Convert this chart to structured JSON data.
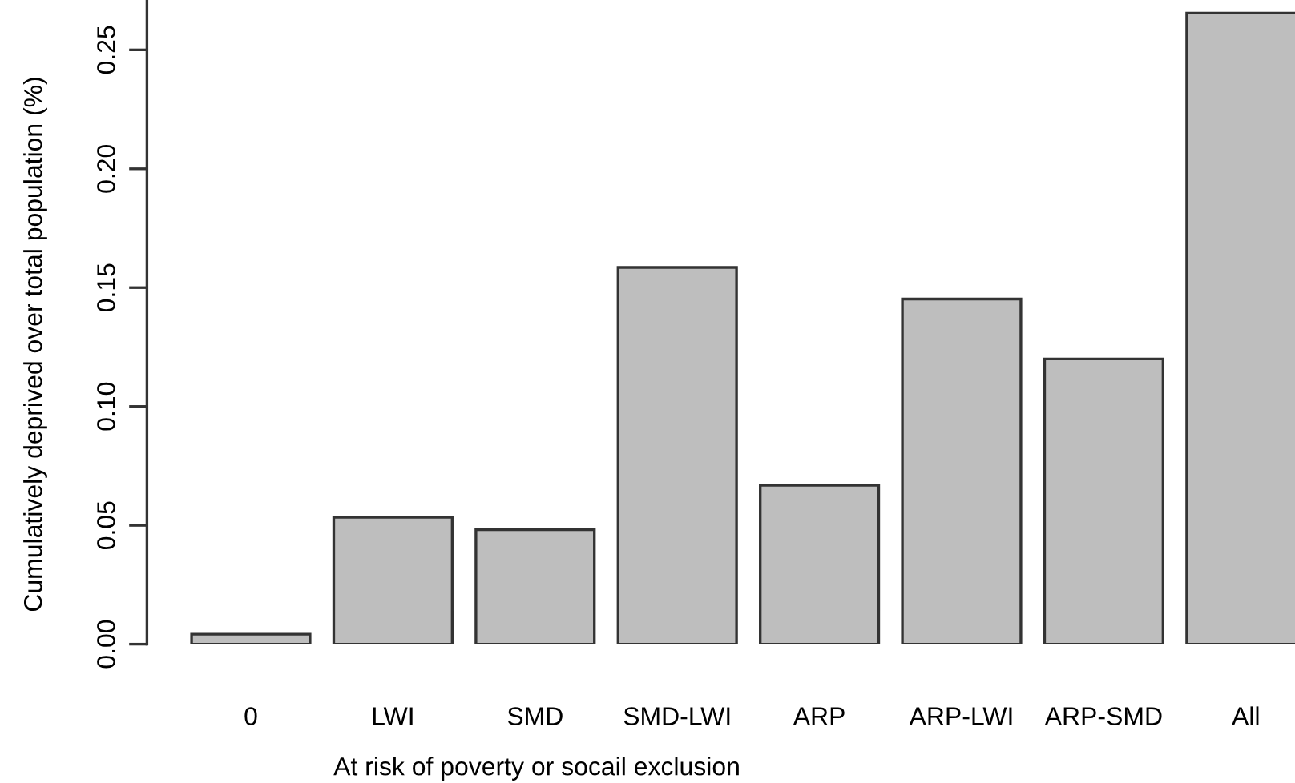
{
  "chart_data": {
    "type": "bar",
    "xlabel": "At risk of poverty or socail exclusion",
    "ylabel": "Cumulatively deprived over total population (%)",
    "categories": [
      "0",
      "LWI",
      "SMD",
      "SMD-LWI",
      "ARP",
      "ARP-LWI",
      "ARP-SMD",
      "All"
    ],
    "values": [
      0.0042,
      0.0534,
      0.0482,
      0.1585,
      0.0669,
      0.1452,
      0.12,
      0.2655
    ],
    "color": "#bebebe",
    "ylim": [
      0,
      0.271
    ],
    "yticks": [
      {
        "value": 0,
        "label": "0.00"
      },
      {
        "value": 0.05,
        "label": "0.05"
      },
      {
        "value": 0.1,
        "label": "0.10"
      },
      {
        "value": 0.15,
        "label": "0.15"
      },
      {
        "value": 0.2,
        "label": "0.20"
      },
      {
        "value": 0.25,
        "label": "0.25"
      }
    ],
    "grid": false
  }
}
